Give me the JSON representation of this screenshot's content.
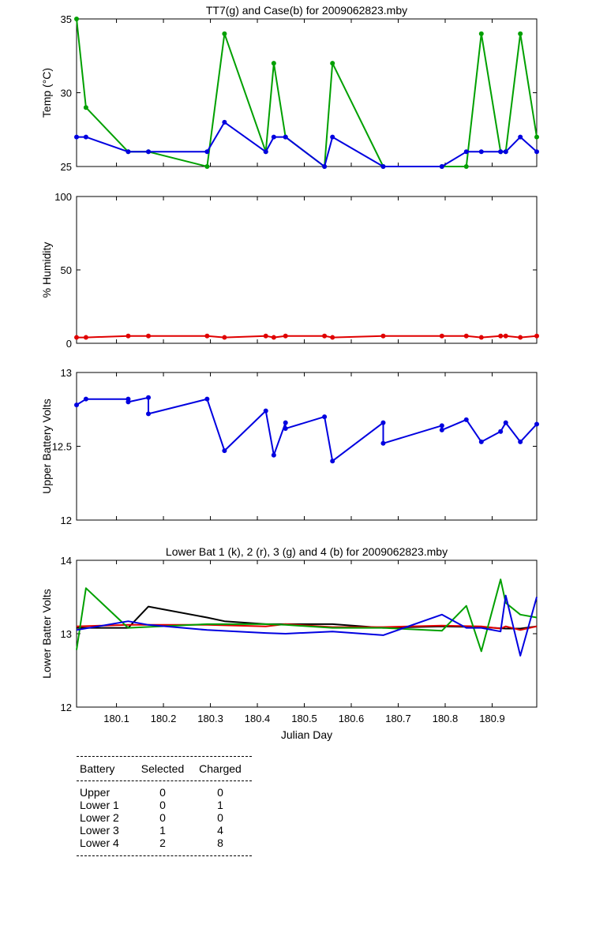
{
  "chart_data": [
    {
      "type": "line",
      "title": "TT7(g) and Case(b) for 2009062823.mby",
      "ylabel": "Temp  (°C)",
      "xlim": [
        180.015,
        180.995
      ],
      "ylim": [
        25,
        35
      ],
      "yticks": [
        "25",
        "30",
        "35"
      ],
      "grid": false,
      "series": [
        {
          "color": "#00a000",
          "x": [
            180.015,
            180.035,
            180.125,
            180.168,
            180.293,
            180.33,
            180.418,
            180.435,
            180.46,
            180.543,
            180.56,
            180.668,
            180.793,
            180.845,
            180.877,
            180.918,
            180.929,
            180.96,
            180.995
          ],
          "y": [
            35,
            29,
            26,
            26,
            25,
            34,
            26,
            32,
            27,
            25,
            32,
            25,
            25,
            25,
            34,
            26,
            26,
            34,
            27
          ]
        },
        {
          "color": "#0000e0",
          "x": [
            180.015,
            180.035,
            180.125,
            180.168,
            180.293,
            180.33,
            180.418,
            180.435,
            180.46,
            180.543,
            180.56,
            180.668,
            180.793,
            180.845,
            180.877,
            180.918,
            180.929,
            180.96,
            180.995
          ],
          "y": [
            27,
            27,
            26,
            26,
            26,
            28,
            26,
            27,
            27,
            25,
            27,
            25,
            25,
            26,
            26,
            26,
            26,
            27,
            26
          ]
        }
      ]
    },
    {
      "type": "line",
      "ylabel": "% Humidity",
      "xlim": [
        180.015,
        180.995
      ],
      "ylim": [
        0,
        100
      ],
      "yticks": [
        "0",
        "50",
        "100"
      ],
      "grid": false,
      "series": [
        {
          "color": "#e00000",
          "x": [
            180.015,
            180.035,
            180.125,
            180.168,
            180.293,
            180.33,
            180.418,
            180.435,
            180.46,
            180.543,
            180.56,
            180.668,
            180.793,
            180.845,
            180.877,
            180.918,
            180.929,
            180.96,
            180.995
          ],
          "y": [
            4,
            4,
            5,
            5,
            5,
            4,
            5,
            4,
            5,
            5,
            4,
            5,
            5,
            5,
            4,
            5,
            5,
            4,
            5
          ]
        }
      ]
    },
    {
      "type": "line",
      "ylabel": "Upper Battery Volts",
      "xlim": [
        180.015,
        180.995
      ],
      "ylim": [
        12,
        13
      ],
      "yticks": [
        "12",
        "12.5",
        "13"
      ],
      "grid": false,
      "series": [
        {
          "color": "#0000e0",
          "x": [
            180.015,
            180.035,
            180.125,
            180.125,
            180.168,
            180.168,
            180.293,
            180.33,
            180.418,
            180.435,
            180.46,
            180.46,
            180.543,
            180.56,
            180.668,
            180.668,
            180.793,
            180.793,
            180.845,
            180.877,
            180.918,
            180.929,
            180.96,
            180.995
          ],
          "y": [
            12.78,
            12.82,
            12.82,
            12.8,
            12.83,
            12.72,
            12.82,
            12.47,
            12.74,
            12.44,
            12.66,
            12.62,
            12.7,
            12.4,
            12.66,
            12.52,
            12.64,
            12.61,
            12.68,
            12.53,
            12.6,
            12.66,
            12.53,
            12.65
          ]
        }
      ]
    },
    {
      "type": "line",
      "title": "Lower Bat 1 (k), 2 (r), 3 (g) and 4 (b) for 2009062823.mby",
      "xlabel": "Julian Day",
      "ylabel": "Lower Batter Volts",
      "xlim": [
        180.015,
        180.995
      ],
      "ylim": [
        12,
        14
      ],
      "yticks": [
        "12",
        "13",
        "14"
      ],
      "xticks": [
        180.1,
        180.2,
        180.3,
        180.4,
        180.5,
        180.6,
        180.7,
        180.8,
        180.9
      ],
      "xticklabels": [
        "180.1",
        "180.2",
        "180.3",
        "180.4",
        "180.5",
        "180.6",
        "180.7",
        "180.8",
        "180.9"
      ],
      "grid": false,
      "series": [
        {
          "color": "#000000",
          "x": [
            180.015,
            180.125,
            180.168,
            180.293,
            180.33,
            180.418,
            180.46,
            180.56,
            180.668,
            180.793,
            180.877,
            180.929,
            180.96,
            180.995
          ],
          "y": [
            13.08,
            13.08,
            13.37,
            13.22,
            13.17,
            13.13,
            13.13,
            13.13,
            13.08,
            13.1,
            13.09,
            13.07,
            13.07,
            13.1
          ]
        },
        {
          "color": "#e00000",
          "x": [
            180.015,
            180.125,
            180.293,
            180.418,
            180.46,
            180.56,
            180.668,
            180.793,
            180.877,
            180.918,
            180.929,
            180.96,
            180.995
          ],
          "y": [
            13.1,
            13.12,
            13.12,
            13.1,
            13.13,
            13.09,
            13.09,
            13.11,
            13.1,
            13.07,
            13.1,
            13.05,
            13.1
          ]
        },
        {
          "color": "#00a000",
          "x": [
            180.015,
            180.035,
            180.125,
            180.293,
            180.418,
            180.46,
            180.56,
            180.668,
            180.793,
            180.845,
            180.877,
            180.918,
            180.929,
            180.96,
            180.995
          ],
          "y": [
            12.78,
            13.62,
            13.08,
            13.13,
            13.13,
            13.12,
            13.08,
            13.08,
            13.04,
            13.38,
            12.76,
            13.74,
            13.42,
            13.26,
            13.22
          ]
        },
        {
          "color": "#0000e0",
          "x": [
            180.015,
            180.125,
            180.168,
            180.293,
            180.418,
            180.46,
            180.56,
            180.668,
            180.793,
            180.845,
            180.877,
            180.918,
            180.929,
            180.96,
            180.995
          ],
          "y": [
            13.05,
            13.17,
            13.12,
            13.05,
            13.01,
            13.0,
            13.03,
            12.98,
            13.26,
            13.08,
            13.08,
            13.03,
            13.52,
            12.7,
            13.5
          ]
        }
      ]
    }
  ],
  "table": {
    "headers": [
      "Battery",
      "Selected",
      "Charged"
    ],
    "rows": [
      [
        "Upper",
        "0",
        "0"
      ],
      [
        "Lower 1",
        "0",
        "1"
      ],
      [
        "Lower 2",
        "0",
        "0"
      ],
      [
        "Lower 3",
        "1",
        "4"
      ],
      [
        "Lower 4",
        "2",
        "8"
      ]
    ]
  }
}
